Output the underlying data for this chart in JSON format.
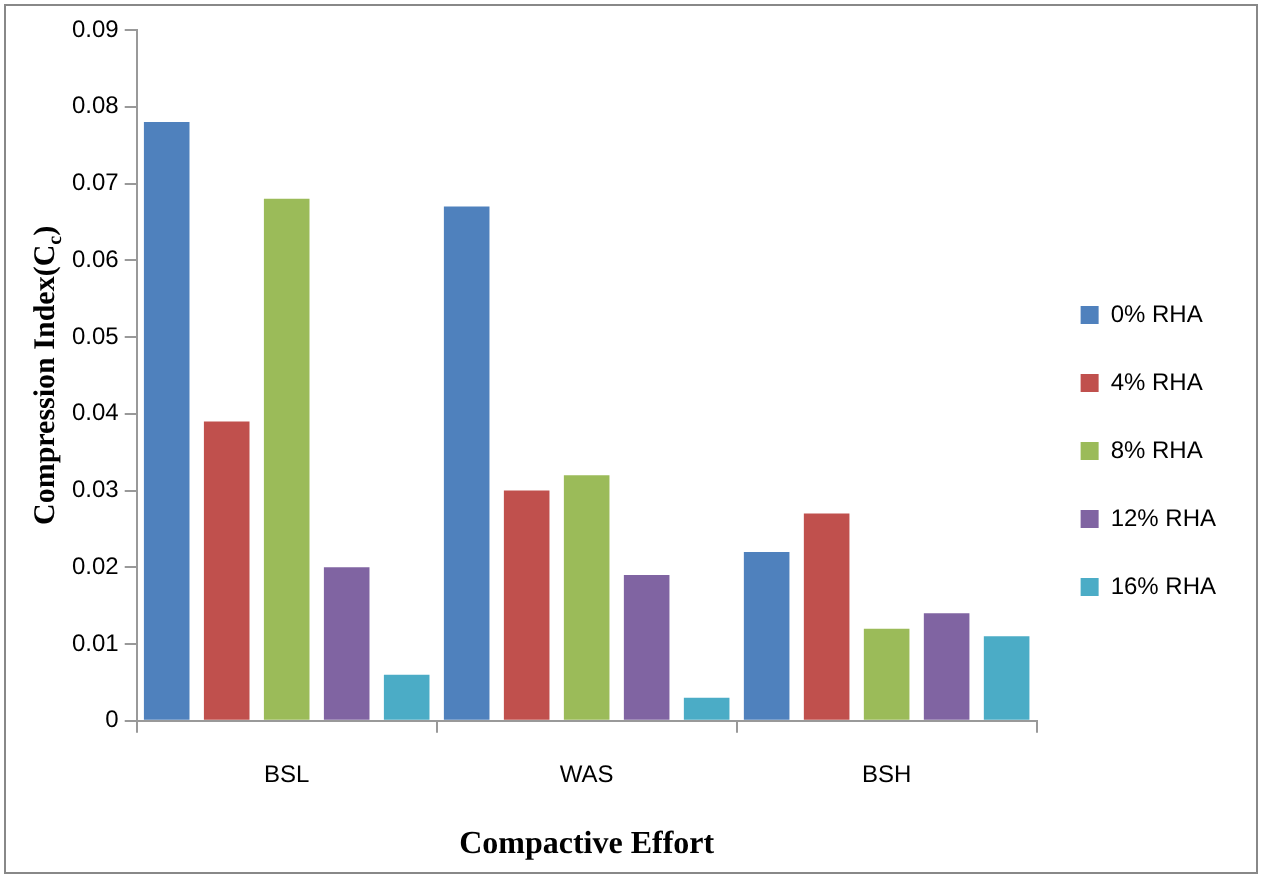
{
  "chart_data": {
    "type": "bar",
    "xlabel": "Compactive Effort",
    "ylabel": "Compression Index(C$_{c}$)",
    "categories": [
      "BSL",
      "WAS",
      "BSH"
    ],
    "series": [
      {
        "name": "0% RHA",
        "color": "#4f81bd",
        "values": [
          0.078,
          0.067,
          0.022
        ]
      },
      {
        "name": "4% RHA",
        "color": "#c0504d",
        "values": [
          0.039,
          0.03,
          0.027
        ]
      },
      {
        "name": "8% RHA",
        "color": "#9bbb59",
        "values": [
          0.068,
          0.032,
          0.012
        ]
      },
      {
        "name": "12% RHA",
        "color": "#8064a2",
        "values": [
          0.02,
          0.019,
          0.014
        ]
      },
      {
        "name": "16% RHA",
        "color": "#4bacc6",
        "values": [
          0.006,
          0.003,
          0.011
        ]
      }
    ],
    "ylim": [
      0,
      0.09
    ],
    "yticks": [
      0,
      0.01,
      0.02,
      0.03,
      0.04,
      0.05,
      0.06,
      0.07,
      0.08,
      0.09
    ],
    "grid": false,
    "legend": "right"
  }
}
